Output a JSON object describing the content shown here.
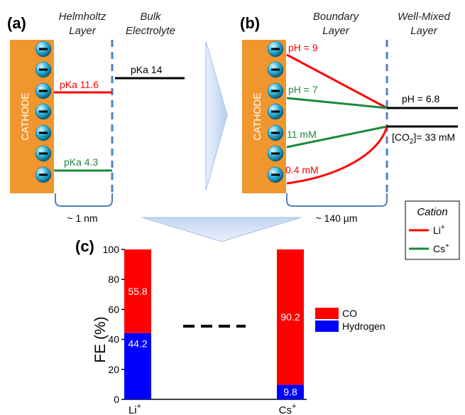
{
  "panels": {
    "a": "(a)",
    "b": "(b)",
    "c": "(c)"
  },
  "panel_a": {
    "header_left": [
      "Helmholtz",
      "Layer"
    ],
    "header_right": [
      "Bulk",
      "Electrolyte"
    ],
    "cathode": "CATHODE",
    "pka_top": "pKa 11.6",
    "pka_bulk": "pKa 14",
    "pka_bottom": "pKa 4.3",
    "width": "~ 1 nm"
  },
  "panel_b": {
    "header_left": [
      "Boundary",
      "Layer"
    ],
    "header_right": [
      "Well-Mixed",
      "Layer"
    ],
    "cathode": "CATHODE",
    "ph_li": "pH = 9",
    "ph_cs": "pH = 7",
    "ph_bulk": "pH = 6.8",
    "conc_cs": "11 mM",
    "conc_li": "0.4 mM",
    "co2_prefix": "[CO",
    "co2_sub": "2",
    "co2_suffix": "]= 33 mM",
    "width": "~ 140 µm"
  },
  "legend_cation": {
    "title": "Cation",
    "items": [
      {
        "label": "Li",
        "sup": "+",
        "color": "#ff0000"
      },
      {
        "label": "Cs",
        "sup": "+",
        "color": "#1a8a3a"
      }
    ]
  },
  "colors": {
    "cathode": "#f0962e",
    "li": "#ff0000",
    "cs": "#1a8a3a",
    "co": "#ff0000",
    "hydrogen": "#0000ff",
    "sphere": "#2bb0d8"
  },
  "chart_data": {
    "type": "bar",
    "stacked": true,
    "categories": [
      "Li",
      "Cs"
    ],
    "category_sup": "+",
    "ylabel": "FE (%)",
    "ylim": [
      0,
      100
    ],
    "yticks": [
      0,
      20,
      40,
      60,
      80,
      100
    ],
    "series": [
      {
        "name": "Hydrogen",
        "values": [
          44.2,
          9.8
        ],
        "labels": [
          "44.2",
          "9.8"
        ],
        "color": "#0000ff"
      },
      {
        "name": "CO",
        "values": [
          55.8,
          90.2
        ],
        "labels": [
          "55.8",
          "90.2"
        ],
        "color": "#ff0000"
      }
    ],
    "legend": {
      "placement": "right",
      "items": [
        {
          "name": "CO",
          "color": "#ff0000"
        },
        {
          "name": "Hydrogen",
          "color": "#0000ff"
        }
      ]
    }
  }
}
